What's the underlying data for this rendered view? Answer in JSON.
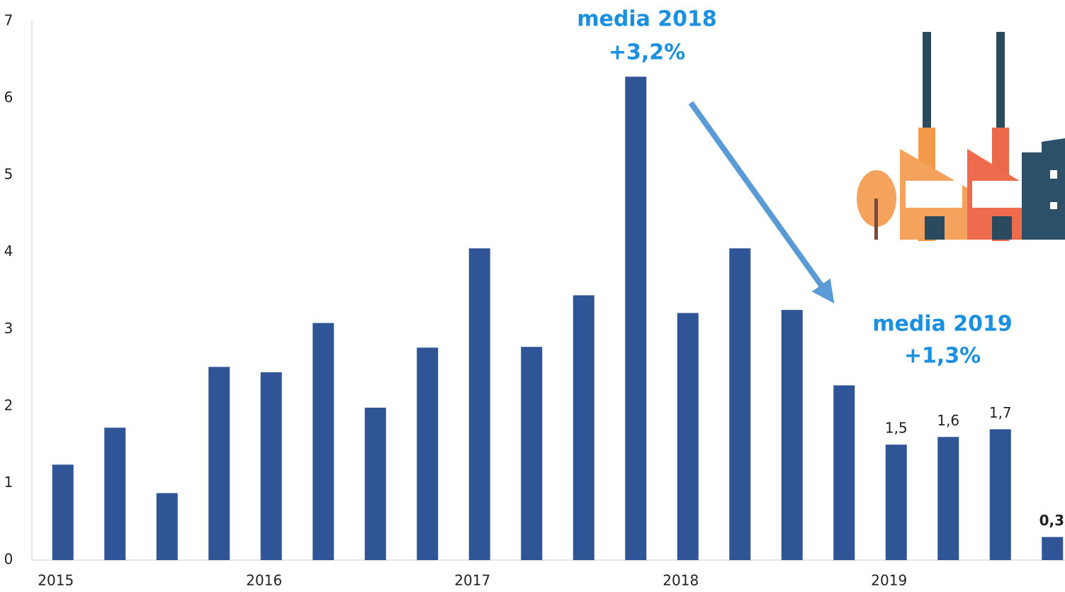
{
  "chart_data": {
    "type": "bar",
    "categories": [
      "2015",
      null,
      null,
      null,
      "2016",
      null,
      null,
      null,
      "2017",
      null,
      null,
      null,
      "2018",
      null,
      null,
      null,
      "2019",
      null,
      null,
      null
    ],
    "values": [
      1.24,
      1.72,
      0.87,
      2.51,
      2.44,
      3.08,
      1.98,
      2.76,
      4.05,
      2.77,
      3.44,
      6.28,
      3.21,
      4.05,
      3.25,
      2.27,
      1.5,
      1.6,
      1.7,
      0.3
    ],
    "value_labels": [
      null,
      null,
      null,
      null,
      null,
      null,
      null,
      null,
      null,
      null,
      null,
      null,
      null,
      null,
      null,
      null,
      "1,5",
      "1,6",
      "1,7",
      "0,3"
    ],
    "color": "#2f5597",
    "ylim": [
      0,
      7
    ],
    "yticks": [
      0,
      1,
      2,
      3,
      4,
      5,
      6,
      7
    ],
    "grid": false,
    "annotations": [
      "media 2018",
      "+3,2%",
      "media 2019",
      "+1,3%"
    ]
  }
}
